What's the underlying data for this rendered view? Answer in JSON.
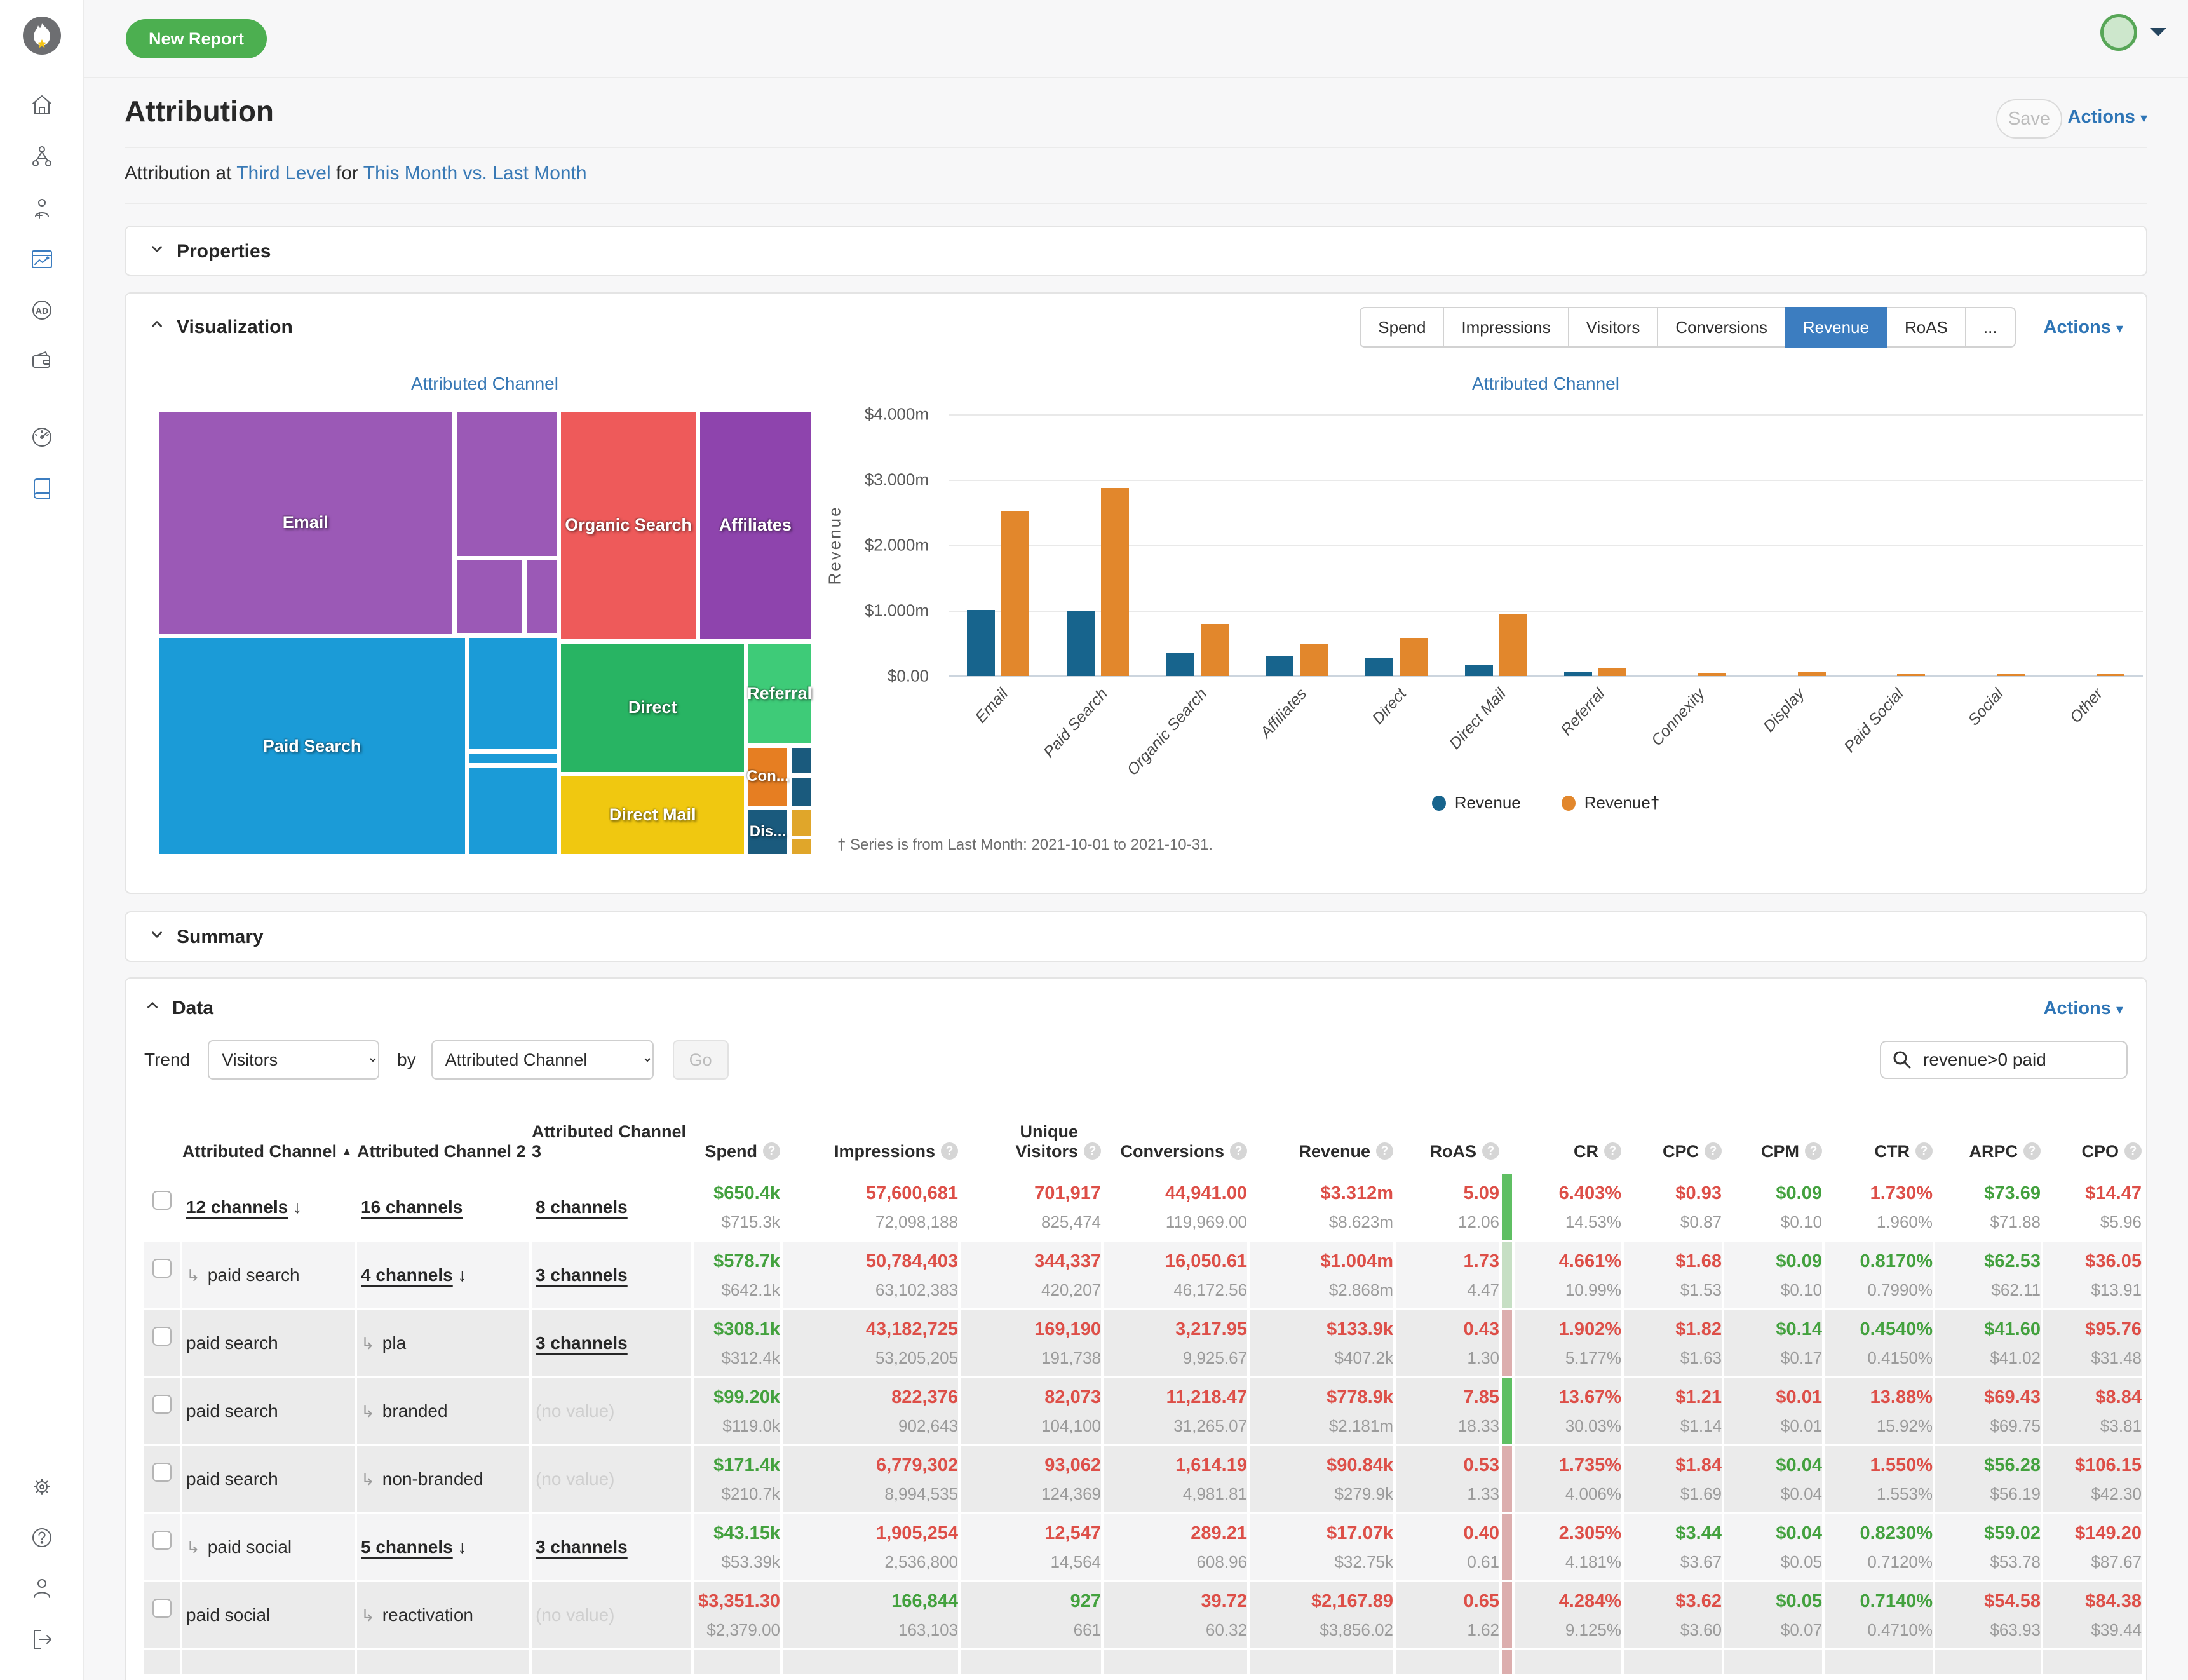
{
  "topbar": {
    "new_report_label": "New Report"
  },
  "sidebar": {
    "icons": [
      "logo-flame-icon",
      "home-icon",
      "org-chart-icon",
      "person-add-icon",
      "report-chart-icon",
      "ad-badge-icon",
      "wallet-icon",
      "speedometer-icon",
      "book-icon",
      "gear-icon",
      "help-icon",
      "person-icon",
      "logout-icon"
    ],
    "active_icon": "report-chart-icon"
  },
  "page": {
    "title": "Attribution",
    "save_label": "Save",
    "actions_label": "Actions",
    "subtitle_prefix": "Attribution at",
    "subtitle_level_link": "Third Level",
    "subtitle_middle": "for",
    "subtitle_range_link": "This Month vs. Last Month"
  },
  "sections": {
    "properties": "Properties",
    "visualization": "Visualization",
    "summary": "Summary",
    "data": "Data"
  },
  "visualization": {
    "tabs": [
      "Spend",
      "Impressions",
      "Visitors",
      "Conversions",
      "Revenue",
      "RoAS",
      "..."
    ],
    "active_tab": "Revenue",
    "actions_label": "Actions"
  },
  "chart_data": [
    {
      "type": "treemap",
      "title": "Attributed Channel",
      "items": [
        {
          "label": "Email",
          "color": "#9b59b6"
        },
        {
          "label": "Organic Search",
          "color": "#ee5a5a"
        },
        {
          "label": "Affiliates",
          "color": "#8e44ad"
        },
        {
          "label": "Paid Search",
          "color": "#1b9bd7"
        },
        {
          "label": "Direct",
          "color": "#28b463"
        },
        {
          "label": "Referral",
          "color": "#3ecb78"
        },
        {
          "label": "Direct Mail",
          "color": "#f0c810"
        },
        {
          "label": "Con...",
          "color": "#e67e22"
        },
        {
          "label": "Dis...",
          "color": "#1a5a7d"
        }
      ]
    },
    {
      "type": "bar",
      "title": "Attributed Channel",
      "categories": [
        "Email",
        "Paid Search",
        "Organic Search",
        "Affiliates",
        "Direct",
        "Direct Mail",
        "Referral",
        "Connexity",
        "Display",
        "Paid Social",
        "Social",
        "Other"
      ],
      "series": [
        {
          "name": "Revenue",
          "color": "#17648d",
          "values_millions": [
            1.01,
            0.99,
            0.35,
            0.3,
            0.28,
            0.17,
            0.07,
            0,
            0,
            0,
            0,
            0
          ]
        },
        {
          "name": "Revenue†",
          "color": "#e2872c",
          "values_millions": [
            2.52,
            2.87,
            0.8,
            0.5,
            0.58,
            0.95,
            0.13,
            0.05,
            0.06,
            0.03,
            0.01,
            0.01
          ]
        }
      ],
      "xlabel": "",
      "ylabel": "Revenue",
      "yticks": [
        "$4.000m",
        "$3.000m",
        "$2.000m",
        "$1.000m",
        "$0.00"
      ],
      "ylim_millions": [
        0,
        4
      ],
      "grid": true,
      "legend_position": "bottom",
      "footnote": "† Series is from Last Month: 2021-10-01 to 2021-10-31."
    }
  ],
  "data_section": {
    "actions_label": "Actions",
    "trend_label": "Trend",
    "trend_value": "Visitors",
    "by_label": "by",
    "by_value": "Attributed Channel",
    "go_label": "Go",
    "search_value": "revenue>0 paid"
  },
  "table": {
    "headers": [
      {
        "label": "Attributed Channel",
        "sort": "asc",
        "help": false
      },
      {
        "label": "Attributed Channel 2",
        "help": false
      },
      {
        "label": "Attributed Channel 3",
        "help": false
      },
      {
        "label": "Spend",
        "help": true
      },
      {
        "label": "Impressions",
        "help": true
      },
      {
        "label": "Unique Visitors",
        "help": true
      },
      {
        "label": "Conversions",
        "help": true
      },
      {
        "label": "Revenue",
        "help": true
      },
      {
        "label": "RoAS",
        "help": true
      },
      {
        "label": "CR",
        "help": true
      },
      {
        "label": "CPC",
        "help": true
      },
      {
        "label": "CPM",
        "help": true
      },
      {
        "label": "CTR",
        "help": true
      },
      {
        "label": "ARPC",
        "help": true
      },
      {
        "label": "CPO",
        "help": true
      }
    ],
    "rows": [
      {
        "level": 0,
        "strip": "green",
        "c1": {
          "t": "12 channels",
          "link": true,
          "drill": true
        },
        "c2": {
          "t": "16 channels",
          "link": true
        },
        "c3": {
          "t": "8 channels",
          "link": true
        },
        "m": [
          {
            "v": "$650.4k",
            "c": "g",
            "p": "$715.3k"
          },
          {
            "v": "57,600,681",
            "c": "r",
            "p": "72,098,188"
          },
          {
            "v": "701,917",
            "c": "r",
            "p": "825,474"
          },
          {
            "v": "44,941.00",
            "c": "r",
            "p": "119,969.00"
          },
          {
            "v": "$3.312m",
            "c": "r",
            "p": "$8.623m"
          },
          {
            "v": "5.09",
            "c": "r",
            "p": "12.06"
          },
          {
            "v": "6.403%",
            "c": "r",
            "p": "14.53%"
          },
          {
            "v": "$0.93",
            "c": "r",
            "p": "$0.87"
          },
          {
            "v": "$0.09",
            "c": "g",
            "p": "$0.10"
          },
          {
            "v": "1.730%",
            "c": "r",
            "p": "1.960%"
          },
          {
            "v": "$73.69",
            "c": "g",
            "p": "$71.88"
          },
          {
            "v": "$14.47",
            "c": "r",
            "p": "$5.96"
          }
        ]
      },
      {
        "level": 1,
        "strip": "palegreen",
        "c1": {
          "t": "paid search",
          "sub": true
        },
        "c2": {
          "t": "4 channels",
          "link": true,
          "drill": true
        },
        "c3": {
          "t": "3 channels",
          "link": true
        },
        "m": [
          {
            "v": "$578.7k",
            "c": "g",
            "p": "$642.1k"
          },
          {
            "v": "50,784,403",
            "c": "r",
            "p": "63,102,383"
          },
          {
            "v": "344,337",
            "c": "r",
            "p": "420,207"
          },
          {
            "v": "16,050.61",
            "c": "r",
            "p": "46,172.56"
          },
          {
            "v": "$1.004m",
            "c": "r",
            "p": "$2.868m"
          },
          {
            "v": "1.73",
            "c": "r",
            "p": "4.47"
          },
          {
            "v": "4.661%",
            "c": "r",
            "p": "10.99%"
          },
          {
            "v": "$1.68",
            "c": "r",
            "p": "$1.53"
          },
          {
            "v": "$0.09",
            "c": "g",
            "p": "$0.10"
          },
          {
            "v": "0.8170%",
            "c": "g",
            "p": "0.7990%"
          },
          {
            "v": "$62.53",
            "c": "g",
            "p": "$62.11"
          },
          {
            "v": "$36.05",
            "c": "r",
            "p": "$13.91"
          }
        ]
      },
      {
        "level": 2,
        "strip": "pink",
        "c1": {
          "t": "paid search"
        },
        "c2": {
          "t": "pla",
          "sub": true
        },
        "c3": {
          "t": "3 channels",
          "link": true
        },
        "m": [
          {
            "v": "$308.1k",
            "c": "g",
            "p": "$312.4k"
          },
          {
            "v": "43,182,725",
            "c": "r",
            "p": "53,205,205"
          },
          {
            "v": "169,190",
            "c": "r",
            "p": "191,738"
          },
          {
            "v": "3,217.95",
            "c": "r",
            "p": "9,925.67"
          },
          {
            "v": "$133.9k",
            "c": "r",
            "p": "$407.2k"
          },
          {
            "v": "0.43",
            "c": "r",
            "p": "1.30"
          },
          {
            "v": "1.902%",
            "c": "r",
            "p": "5.177%"
          },
          {
            "v": "$1.82",
            "c": "r",
            "p": "$1.63"
          },
          {
            "v": "$0.14",
            "c": "g",
            "p": "$0.17"
          },
          {
            "v": "0.4540%",
            "c": "g",
            "p": "0.4150%"
          },
          {
            "v": "$41.60",
            "c": "g",
            "p": "$41.02"
          },
          {
            "v": "$95.76",
            "c": "r",
            "p": "$31.48"
          }
        ]
      },
      {
        "level": 2,
        "strip": "green",
        "c1": {
          "t": "paid search"
        },
        "c2": {
          "t": "branded",
          "sub": true
        },
        "c3": {
          "t": "(no value)",
          "novalue": true
        },
        "m": [
          {
            "v": "$99.20k",
            "c": "g",
            "p": "$119.0k"
          },
          {
            "v": "822,376",
            "c": "r",
            "p": "902,643"
          },
          {
            "v": "82,073",
            "c": "r",
            "p": "104,100"
          },
          {
            "v": "11,218.47",
            "c": "r",
            "p": "31,265.07"
          },
          {
            "v": "$778.9k",
            "c": "r",
            "p": "$2.181m"
          },
          {
            "v": "7.85",
            "c": "r",
            "p": "18.33"
          },
          {
            "v": "13.67%",
            "c": "r",
            "p": "30.03%"
          },
          {
            "v": "$1.21",
            "c": "r",
            "p": "$1.14"
          },
          {
            "v": "$0.01",
            "c": "r",
            "p": "$0.01"
          },
          {
            "v": "13.88%",
            "c": "r",
            "p": "15.92%"
          },
          {
            "v": "$69.43",
            "c": "r",
            "p": "$69.75"
          },
          {
            "v": "$8.84",
            "c": "r",
            "p": "$3.81"
          }
        ]
      },
      {
        "level": 2,
        "strip": "pink",
        "c1": {
          "t": "paid search"
        },
        "c2": {
          "t": "non-branded",
          "sub": true
        },
        "c3": {
          "t": "(no value)",
          "novalue": true
        },
        "m": [
          {
            "v": "$171.4k",
            "c": "g",
            "p": "$210.7k"
          },
          {
            "v": "6,779,302",
            "c": "r",
            "p": "8,994,535"
          },
          {
            "v": "93,062",
            "c": "r",
            "p": "124,369"
          },
          {
            "v": "1,614.19",
            "c": "r",
            "p": "4,981.81"
          },
          {
            "v": "$90.84k",
            "c": "r",
            "p": "$279.9k"
          },
          {
            "v": "0.53",
            "c": "r",
            "p": "1.33"
          },
          {
            "v": "1.735%",
            "c": "r",
            "p": "4.006%"
          },
          {
            "v": "$1.84",
            "c": "r",
            "p": "$1.69"
          },
          {
            "v": "$0.04",
            "c": "g",
            "p": "$0.04"
          },
          {
            "v": "1.550%",
            "c": "r",
            "p": "1.553%"
          },
          {
            "v": "$56.28",
            "c": "g",
            "p": "$56.19"
          },
          {
            "v": "$106.15",
            "c": "r",
            "p": "$42.30"
          }
        ]
      },
      {
        "level": 1,
        "strip": "pink",
        "c1": {
          "t": "paid social",
          "sub": true
        },
        "c2": {
          "t": "5 channels",
          "link": true,
          "drill": true
        },
        "c3": {
          "t": "3 channels",
          "link": true
        },
        "m": [
          {
            "v": "$43.15k",
            "c": "g",
            "p": "$53.39k"
          },
          {
            "v": "1,905,254",
            "c": "r",
            "p": "2,536,800"
          },
          {
            "v": "12,547",
            "c": "r",
            "p": "14,564"
          },
          {
            "v": "289.21",
            "c": "r",
            "p": "608.96"
          },
          {
            "v": "$17.07k",
            "c": "r",
            "p": "$32.75k"
          },
          {
            "v": "0.40",
            "c": "r",
            "p": "0.61"
          },
          {
            "v": "2.305%",
            "c": "r",
            "p": "4.181%"
          },
          {
            "v": "$3.44",
            "c": "g",
            "p": "$3.67"
          },
          {
            "v": "$0.04",
            "c": "g",
            "p": "$0.05"
          },
          {
            "v": "0.8230%",
            "c": "g",
            "p": "0.7120%"
          },
          {
            "v": "$59.02",
            "c": "g",
            "p": "$53.78"
          },
          {
            "v": "$149.20",
            "c": "r",
            "p": "$87.67"
          }
        ]
      },
      {
        "level": 2,
        "strip": "pink",
        "c1": {
          "t": "paid social"
        },
        "c2": {
          "t": "reactivation",
          "sub": true
        },
        "c3": {
          "t": "(no value)",
          "novalue": true
        },
        "m": [
          {
            "v": "$3,351.30",
            "c": "r",
            "p": "$2,379.00"
          },
          {
            "v": "166,844",
            "c": "g",
            "p": "163,103"
          },
          {
            "v": "927",
            "c": "g",
            "p": "661"
          },
          {
            "v": "39.72",
            "c": "r",
            "p": "60.32"
          },
          {
            "v": "$2,167.89",
            "c": "r",
            "p": "$3,856.02"
          },
          {
            "v": "0.65",
            "c": "r",
            "p": "1.62"
          },
          {
            "v": "4.284%",
            "c": "r",
            "p": "9.125%"
          },
          {
            "v": "$3.62",
            "c": "r",
            "p": "$3.60"
          },
          {
            "v": "$0.05",
            "c": "g",
            "p": "$0.07"
          },
          {
            "v": "0.7140%",
            "c": "g",
            "p": "0.4710%"
          },
          {
            "v": "$54.58",
            "c": "r",
            "p": "$63.93"
          },
          {
            "v": "$84.38",
            "c": "r",
            "p": "$39.44"
          }
        ]
      },
      {
        "level": 2,
        "strip": "pink",
        "partial": true,
        "c1": null,
        "c2": null,
        "c3": null,
        "m": []
      }
    ]
  },
  "colors": {
    "accent_blue": "#2e75b6",
    "tab_active_blue": "#3c7dc0",
    "button_green": "#4caf50",
    "positive_green": "#43a13e",
    "negative_red": "#dd4f48",
    "muted_gray": "#9b9b9b"
  }
}
